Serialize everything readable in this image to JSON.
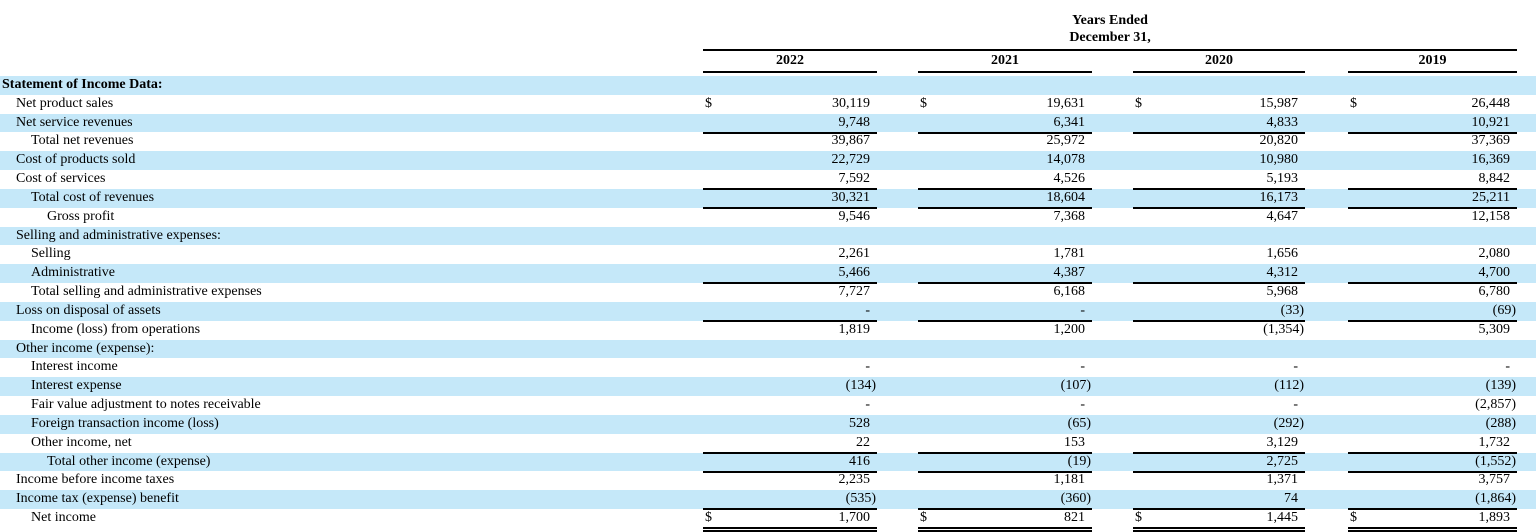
{
  "colors": {
    "stripe": "#c5e8f9",
    "text": "#000000",
    "rule": "#000000"
  },
  "table": {
    "header": {
      "title_line1": "Years Ended",
      "title_line2": "December 31,",
      "years": [
        "2022",
        "2021",
        "2020",
        "2019"
      ]
    },
    "currency_symbol": "$",
    "rows": [
      {
        "label": "Statement of Income Data:",
        "indent": 0,
        "bold": true,
        "dollar": false,
        "underline": "none",
        "shaded": true,
        "values": [
          "",
          "",
          "",
          ""
        ]
      },
      {
        "label": "Net product sales",
        "indent": 1,
        "bold": false,
        "dollar": true,
        "underline": "none",
        "shaded": false,
        "values": [
          "30,119",
          "19,631",
          "15,987",
          "26,448"
        ]
      },
      {
        "label": "Net service revenues",
        "indent": 1,
        "bold": false,
        "dollar": false,
        "underline": "single",
        "shaded": true,
        "values": [
          "9,748",
          "6,341",
          "4,833",
          "10,921"
        ]
      },
      {
        "label": "Total net revenues",
        "indent": 2,
        "bold": false,
        "dollar": false,
        "underline": "none",
        "shaded": false,
        "values": [
          "39,867",
          "25,972",
          "20,820",
          "37,369"
        ]
      },
      {
        "label": "Cost of products sold",
        "indent": 1,
        "bold": false,
        "dollar": false,
        "underline": "none",
        "shaded": true,
        "values": [
          "22,729",
          "14,078",
          "10,980",
          "16,369"
        ]
      },
      {
        "label": "Cost of services",
        "indent": 1,
        "bold": false,
        "dollar": false,
        "underline": "single",
        "shaded": false,
        "values": [
          "7,592",
          "4,526",
          "5,193",
          "8,842"
        ]
      },
      {
        "label": "Total cost of revenues",
        "indent": 2,
        "bold": false,
        "dollar": false,
        "underline": "single",
        "shaded": true,
        "values": [
          "30,321",
          "18,604",
          "16,173",
          "25,211"
        ]
      },
      {
        "label": "Gross profit",
        "indent": 3,
        "bold": false,
        "dollar": false,
        "underline": "none",
        "shaded": false,
        "values": [
          "9,546",
          "7,368",
          "4,647",
          "12,158"
        ]
      },
      {
        "label": "Selling and administrative expenses:",
        "indent": 1,
        "bold": false,
        "dollar": false,
        "underline": "none",
        "shaded": true,
        "values": [
          "",
          "",
          "",
          ""
        ]
      },
      {
        "label": "Selling",
        "indent": 2,
        "bold": false,
        "dollar": false,
        "underline": "none",
        "shaded": false,
        "values": [
          "2,261",
          "1,781",
          "1,656",
          "2,080"
        ]
      },
      {
        "label": "Administrative",
        "indent": 2,
        "bold": false,
        "dollar": false,
        "underline": "single",
        "shaded": true,
        "values": [
          "5,466",
          "4,387",
          "4,312",
          "4,700"
        ]
      },
      {
        "label": "Total selling and administrative expenses",
        "indent": 2,
        "bold": false,
        "dollar": false,
        "underline": "none",
        "shaded": false,
        "values": [
          "7,727",
          "6,168",
          "5,968",
          "6,780"
        ]
      },
      {
        "label": "Loss on disposal of assets",
        "indent": 1,
        "bold": false,
        "dollar": false,
        "underline": "single",
        "shaded": true,
        "values": [
          "-",
          "-",
          "(33)",
          "(69)"
        ]
      },
      {
        "label": "Income (loss) from operations",
        "indent": 2,
        "bold": false,
        "dollar": false,
        "underline": "none",
        "shaded": false,
        "values": [
          "1,819",
          "1,200",
          "(1,354)",
          "5,309"
        ]
      },
      {
        "label": "Other income (expense):",
        "indent": 1,
        "bold": false,
        "dollar": false,
        "underline": "none",
        "shaded": true,
        "values": [
          "",
          "",
          "",
          ""
        ]
      },
      {
        "label": "Interest income",
        "indent": 2,
        "bold": false,
        "dollar": false,
        "underline": "none",
        "shaded": false,
        "values": [
          "-",
          "-",
          "-",
          "-"
        ]
      },
      {
        "label": "Interest expense",
        "indent": 2,
        "bold": false,
        "dollar": false,
        "underline": "none",
        "shaded": true,
        "values": [
          "(134)",
          "(107)",
          "(112)",
          "(139)"
        ]
      },
      {
        "label": "Fair value adjustment to notes receivable",
        "indent": 2,
        "bold": false,
        "dollar": false,
        "underline": "none",
        "shaded": false,
        "values": [
          "-",
          "-",
          "-",
          "(2,857)"
        ]
      },
      {
        "label": "Foreign transaction income (loss)",
        "indent": 2,
        "bold": false,
        "dollar": false,
        "underline": "none",
        "shaded": true,
        "values": [
          "528",
          "(65)",
          "(292)",
          "(288)"
        ]
      },
      {
        "label": "Other income, net",
        "indent": 2,
        "bold": false,
        "dollar": false,
        "underline": "single",
        "shaded": false,
        "values": [
          "22",
          "153",
          "3,129",
          "1,732"
        ]
      },
      {
        "label": "Total other income (expense)",
        "indent": 3,
        "bold": false,
        "dollar": false,
        "underline": "single",
        "shaded": true,
        "values": [
          "416",
          "(19)",
          "2,725",
          "(1,552)"
        ]
      },
      {
        "label": "Income before income taxes",
        "indent": 1,
        "bold": false,
        "dollar": false,
        "underline": "none",
        "shaded": false,
        "values": [
          "2,235",
          "1,181",
          "1,371",
          "3,757"
        ]
      },
      {
        "label": "Income tax (expense) benefit",
        "indent": 1,
        "bold": false,
        "dollar": false,
        "underline": "single",
        "shaded": true,
        "values": [
          "(535)",
          "(360)",
          "74",
          "(1,864)"
        ]
      },
      {
        "label": "Net income",
        "indent": 2,
        "bold": false,
        "dollar": true,
        "underline": "double",
        "shaded": false,
        "values": [
          "1,700",
          "821",
          "1,445",
          "1,893"
        ]
      }
    ]
  }
}
